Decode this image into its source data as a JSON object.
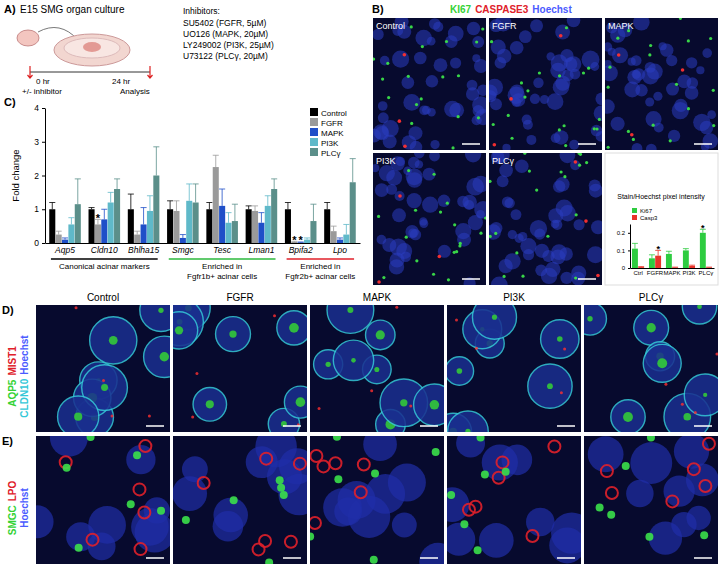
{
  "panels": {
    "a": {
      "label": "A)",
      "title": "E15 SMG organ culture",
      "times": [
        "0 hr",
        "24 hr"
      ],
      "steps": [
        "+/- inhibitor",
        "Analysis"
      ],
      "inhibitors_title": "Inhibitors:",
      "inhibitors": [
        "SU5402 (FGFR, 5µM)",
        "UO126 (MAPK, 20µM)",
        "LY249002 (PI3K, 25µM)",
        "U73122 (PLCγ, 20µM)"
      ]
    },
    "b": {
      "label": "B)",
      "stains": [
        {
          "text": "KI67",
          "color": "#35d235"
        },
        {
          "text": "CASPASE3",
          "color": "#e0202a"
        },
        {
          "text": "Hoechst",
          "color": "#4b5bff"
        }
      ],
      "conditions": [
        "Control",
        "FGFR",
        "MAPK",
        "PI3K",
        "PLCγ"
      ]
    },
    "c": {
      "label": "C)"
    },
    "d": {
      "label": "D)",
      "stains": [
        {
          "text": "AQP5",
          "color": "#35d235"
        },
        {
          "text": "MIST1",
          "color": "#e0202a"
        },
        {
          "text": "CLDN10",
          "color": "#35c8d8"
        },
        {
          "text": "Hoechst",
          "color": "#4b5bff"
        }
      ],
      "conditions": [
        "Control",
        "FGFR",
        "MAPK",
        "PI3K",
        "PLCγ"
      ]
    },
    "e": {
      "label": "E)",
      "stains": [
        {
          "text": "SMGC",
          "color": "#35d235"
        },
        {
          "text": "LPO",
          "color": "#e0202a"
        },
        {
          "text": "Hoechst",
          "color": "#4b5bff"
        }
      ]
    }
  },
  "chart_data": [
    {
      "type": "bar",
      "ylabel": "Fold change",
      "categories": [
        "Aqp5",
        "Cldn10",
        "Bhlha15",
        "Smgc",
        "Tesc",
        "Lman1",
        "Bpifa2",
        "Lpo"
      ],
      "series": [
        {
          "name": "Control",
          "color": "#000000",
          "values": [
            1.0,
            1.0,
            1.0,
            1.0,
            1.0,
            1.0,
            1.0,
            1.0
          ],
          "errors": [
            0.2,
            0.05,
            0.45,
            0.25,
            0.2,
            0.1,
            0.2,
            0.2
          ]
        },
        {
          "name": "FGFR",
          "color": "#9a9a9a",
          "values": [
            0.25,
            0.55,
            0.25,
            0.95,
            2.25,
            0.95,
            0.03,
            0.35
          ],
          "errors": [
            0.1,
            0.15,
            0.1,
            0.3,
            0.35,
            0.15,
            0.02,
            0.15
          ]
        },
        {
          "name": "MAPK",
          "color": "#1f4fc8",
          "values": [
            0.1,
            0.7,
            0.55,
            0.15,
            1.1,
            0.6,
            0.02,
            0.1
          ],
          "errors": [
            0.05,
            0.3,
            0.5,
            0.1,
            0.5,
            0.3,
            0.01,
            0.05
          ]
        },
        {
          "name": "PI3K",
          "color": "#5fb9c9",
          "values": [
            0.55,
            1.2,
            0.95,
            1.25,
            0.6,
            1.1,
            0.1,
            0.25
          ],
          "errors": [
            0.2,
            0.3,
            0.45,
            0.5,
            0.3,
            0.3,
            0.05,
            0.3
          ]
        },
        {
          "name": "PLCγ",
          "color": "#5b8f8a",
          "values": [
            1.15,
            1.6,
            2.0,
            1.2,
            0.65,
            1.6,
            0.65,
            1.8
          ],
          "errors": [
            0.75,
            0.3,
            0.85,
            0.55,
            0.5,
            0.3,
            0.5,
            0.7
          ]
        }
      ],
      "ylim": [
        0,
        4
      ],
      "yticks": [
        0,
        1,
        2,
        3,
        4
      ],
      "legend": "top-right",
      "annotations": [
        {
          "text": "*",
          "category": "Cldn10",
          "series": "FGFR"
        },
        {
          "text": "*",
          "category": "Bpifa2",
          "series": "FGFR"
        },
        {
          "text": "*",
          "category": "Bpifa2",
          "series": "MAPK"
        }
      ],
      "groups": [
        {
          "label": [
            "Canonical acinar markers"
          ],
          "categories": [
            "Aqp5",
            "Cldn10",
            "Bhlha15"
          ],
          "color": "#000000"
        },
        {
          "label": [
            "Enriched in",
            "Fgfr1b+ acinar cells"
          ],
          "categories": [
            "Smgc",
            "Tesc",
            "Lman1"
          ],
          "color": "#2db83d"
        },
        {
          "label": [
            "Enriched in",
            "Fgfr2b+ acinar cells"
          ],
          "categories": [
            "Bpifa2",
            "Lpo"
          ],
          "color": "#e0202a"
        }
      ]
    },
    {
      "type": "bar",
      "title": "Stain/Hoechst pixel intensity",
      "categories": [
        "Ctrl",
        "FGFR",
        "MAPK",
        "PI3K",
        "PLCγ"
      ],
      "series": [
        {
          "name": "Ki67",
          "color": "#2ecc40",
          "values": [
            0.11,
            0.055,
            0.08,
            0.1,
            0.2
          ],
          "errors": [
            0.03,
            0.02,
            0.015,
            0.01,
            0.02
          ]
        },
        {
          "name": "Casp3",
          "color": "#e8332a",
          "values": [
            0.005,
            0.07,
            0.003,
            0.012,
            0.003
          ],
          "errors": [
            0.003,
            0.03,
            0.002,
            0.004,
            0.002
          ]
        }
      ],
      "ylim": [
        0,
        0.25
      ],
      "yticks": [
        0,
        0.1,
        0.2
      ],
      "legend": "top-left",
      "annotations": [
        {
          "text": "*",
          "category": "FGFR",
          "series": "Casp3"
        },
        {
          "text": "*",
          "category": "PLCγ",
          "series": "Ki67"
        }
      ]
    }
  ]
}
